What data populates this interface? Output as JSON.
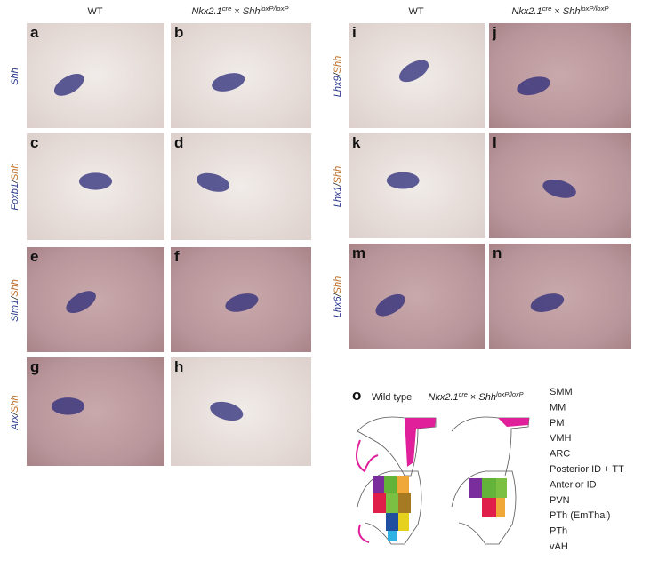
{
  "columns": {
    "wt": "WT",
    "mutant": {
      "gene1": "Nkx2.1",
      "sup1": "cre",
      "times": "×",
      "gene2": "Shh",
      "sup2": "loxP/loxP"
    }
  },
  "panels": [
    "a",
    "b",
    "c",
    "d",
    "e",
    "f",
    "g",
    "h",
    "i",
    "j",
    "k",
    "l",
    "m",
    "n",
    "o"
  ],
  "rows_left": [
    {
      "parts": [
        "Shh"
      ],
      "colors": [
        "#2b3a8f"
      ]
    },
    {
      "parts": [
        "Foxb1",
        "/",
        "Shh"
      ],
      "colors": [
        "#2b3a8f",
        "#333333",
        "#c0702a"
      ]
    },
    {
      "parts": [
        "Sim1",
        "/",
        "Shh"
      ],
      "colors": [
        "#2b3a8f",
        "#333333",
        "#c0702a"
      ]
    },
    {
      "parts": [
        "Arx",
        "/",
        "Shh"
      ],
      "colors": [
        "#2b3a8f",
        "#333333",
        "#c0702a"
      ]
    }
  ],
  "rows_right": [
    {
      "parts": [
        "Lhx9",
        "/",
        "Shh"
      ],
      "colors": [
        "#2b3a8f",
        "#333333",
        "#c0702a"
      ]
    },
    {
      "parts": [
        "Lhx1",
        "/",
        "Shh"
      ],
      "colors": [
        "#2b3a8f",
        "#333333",
        "#c0702a"
      ]
    },
    {
      "parts": [
        "Lhx6",
        "/",
        "Shh"
      ],
      "colors": [
        "#2b3a8f",
        "#333333",
        "#c0702a"
      ]
    }
  ],
  "diagram_title": "Wild type",
  "legend": [
    {
      "label": "SMM",
      "color": "#f0a838"
    },
    {
      "label": "MM",
      "color": "#a57a22"
    },
    {
      "label": "PM",
      "color": "#63b23a"
    },
    {
      "label": "VMH",
      "color": "#e6d21e"
    },
    {
      "label": "ARC",
      "color": "#f07a1e"
    },
    {
      "label": "Posterior ID + TT",
      "color": "#e0301e"
    },
    {
      "label": "Anterior ID",
      "color": "#1f4f9e"
    },
    {
      "label": "PVN",
      "color": "#e01e4a"
    },
    {
      "label": "PTh (EmThal)",
      "color": "#7cc043"
    },
    {
      "label": "PTh",
      "color": "#7a2e9e"
    },
    {
      "label": "vAH",
      "color": "#2fb2e4"
    }
  ]
}
